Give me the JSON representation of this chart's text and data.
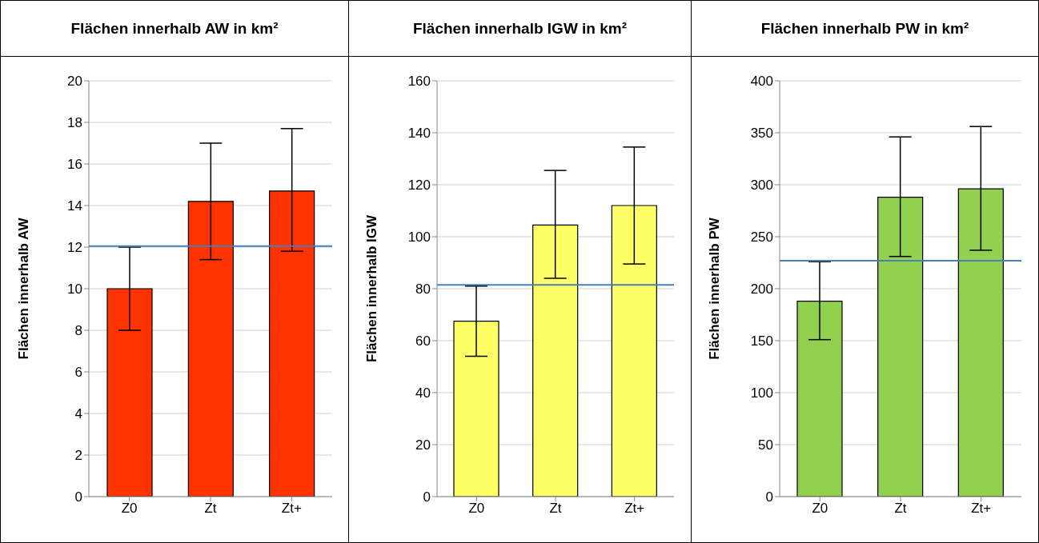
{
  "chart_data": [
    {
      "type": "bar",
      "title": "Flächen innerhalb AW in km²",
      "ylabel": "Flächen innerhalb AW",
      "categories": [
        "Z0",
        "Zt",
        "Zt+"
      ],
      "values": [
        10,
        14.2,
        14.7
      ],
      "color": "#ff3300",
      "errors": [
        [
          8,
          12
        ],
        [
          11.4,
          17.0
        ],
        [
          11.8,
          17.7
        ]
      ],
      "ylim": [
        0,
        20
      ],
      "yticks": [
        0,
        2,
        4,
        6,
        8,
        10,
        12,
        14,
        16,
        18,
        20
      ],
      "grid": "y",
      "ref_lines": [
        {
          "axis": "y",
          "value": 12.05,
          "color": "#4a7ebb"
        }
      ]
    },
    {
      "type": "bar",
      "title": "Flächen innerhalb IGW in km²",
      "ylabel": "Flächen innerhalb IGW",
      "categories": [
        "Z0",
        "Zt",
        "Zt+"
      ],
      "values": [
        67.5,
        104.5,
        112
      ],
      "color": "#ffff66",
      "errors": [
        [
          54,
          81
        ],
        [
          84,
          125.5
        ],
        [
          89.5,
          134.5
        ]
      ],
      "ylim": [
        0,
        160
      ],
      "yticks": [
        0,
        20,
        40,
        60,
        80,
        100,
        120,
        140,
        160
      ],
      "grid": "y",
      "ref_lines": [
        {
          "axis": "y",
          "value": 81.5,
          "color": "#4a7ebb"
        }
      ]
    },
    {
      "type": "bar",
      "title": "Flächen innerhalb PW in km²",
      "ylabel": "Flächen innerhalb PW",
      "categories": [
        "Z0",
        "Zt",
        "Zt+"
      ],
      "values": [
        188,
        288,
        296
      ],
      "color": "#92d050",
      "errors": [
        [
          151,
          226
        ],
        [
          231,
          346
        ],
        [
          237,
          356
        ]
      ],
      "ylim": [
        0,
        400
      ],
      "yticks": [
        0,
        50,
        100,
        150,
        200,
        250,
        300,
        350,
        400
      ],
      "grid": "y",
      "ref_lines": [
        {
          "axis": "y",
          "value": 227,
          "color": "#4a7ebb"
        }
      ]
    }
  ]
}
